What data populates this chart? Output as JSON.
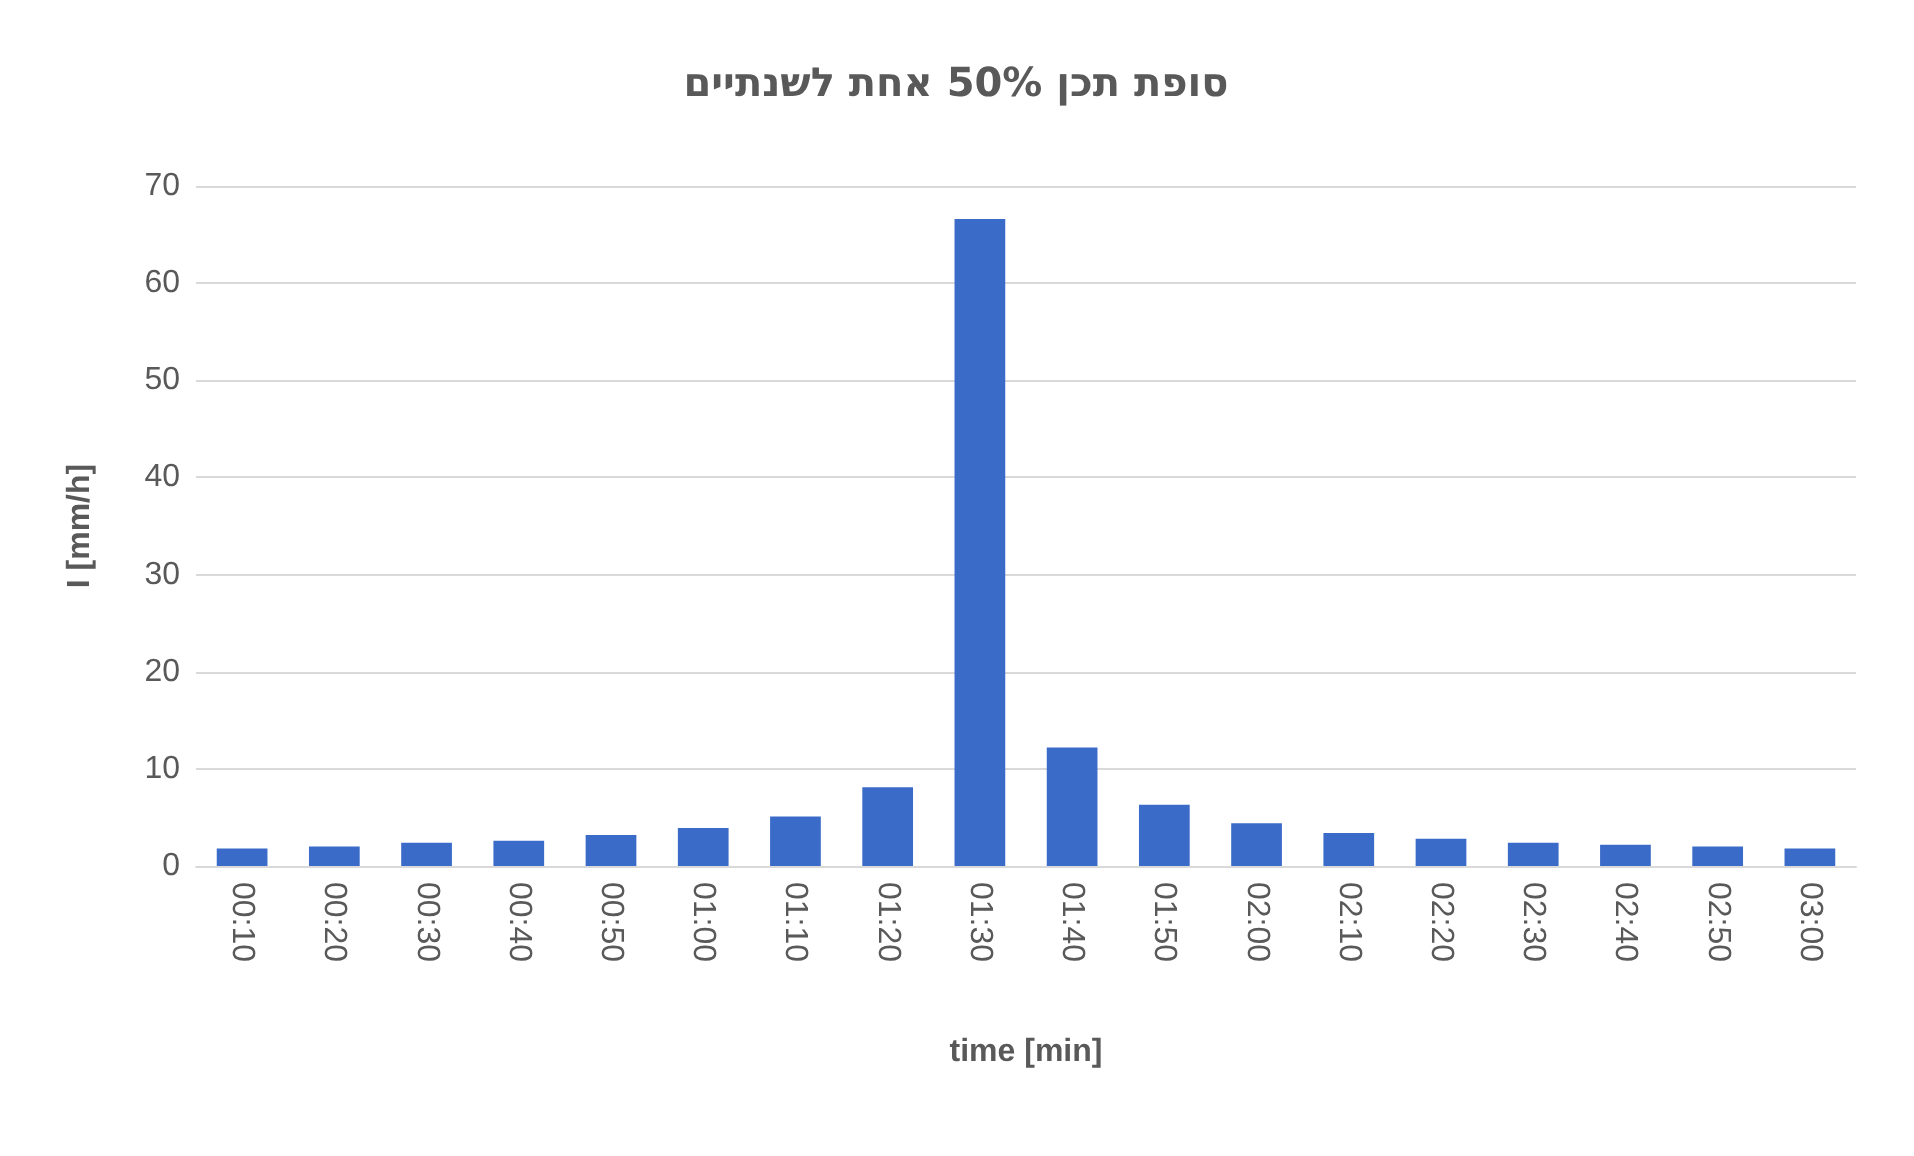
{
  "chart_data": {
    "type": "bar",
    "title": "סופת תכן 50% אחת לשנתיים",
    "xlabel": "time [min]",
    "ylabel": "I [mm/h]",
    "categories": [
      "00:10",
      "00:20",
      "00:30",
      "00:40",
      "00:50",
      "01:00",
      "01:10",
      "01:20",
      "01:30",
      "01:40",
      "01:50",
      "02:00",
      "02:10",
      "02:20",
      "02:30",
      "02:40",
      "02:50",
      "03:00"
    ],
    "values": [
      1.8,
      2.0,
      2.4,
      2.6,
      3.2,
      3.9,
      5.1,
      8.1,
      66.6,
      12.2,
      6.3,
      4.4,
      3.4,
      2.8,
      2.4,
      2.2,
      2.0,
      1.8
    ],
    "color": "#3a6bc8",
    "ylim": [
      0,
      70
    ],
    "yticks": [
      0,
      10,
      20,
      30,
      40,
      50,
      60,
      70
    ],
    "grid": "y"
  }
}
